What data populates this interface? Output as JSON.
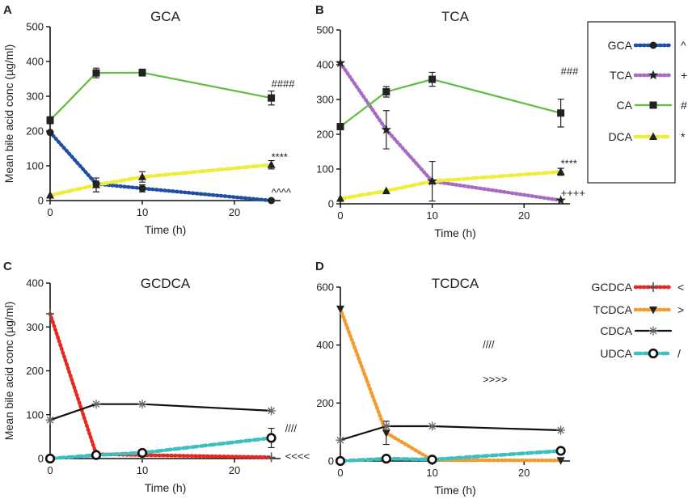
{
  "chart_data": [
    {
      "type": "line",
      "letter": "A",
      "title": "GCA",
      "xlabel": "Time (h)",
      "ylabel": "Mean bile acid conc (µg/ml)",
      "xlim": [
        0,
        25
      ],
      "ylim": [
        0,
        500
      ],
      "xticks": [
        "0",
        "10",
        "20"
      ],
      "yticks": [
        "0",
        "100",
        "200",
        "300",
        "400",
        "500"
      ],
      "series": [
        {
          "name": "GCA",
          "color": "#1f4ea3",
          "style": "dotted",
          "marker": "circle",
          "symbol": "^",
          "x": [
            0,
            5,
            10,
            24
          ],
          "y": [
            196,
            48,
            35,
            0
          ],
          "err": [
            0,
            8,
            10,
            0
          ]
        },
        {
          "name": "CA",
          "color": "#5fbf3a",
          "style": "solid",
          "marker": "square",
          "symbol": "#",
          "x": [
            0,
            5,
            10,
            24
          ],
          "y": [
            231,
            367,
            368,
            295
          ],
          "err": [
            10,
            14,
            10,
            20
          ]
        },
        {
          "name": "DCA",
          "color": "#eded3a",
          "style": "dashed",
          "marker": "triangle",
          "symbol": "*",
          "x": [
            0,
            5,
            10,
            24
          ],
          "y": [
            15,
            45,
            68,
            103
          ],
          "err": [
            0,
            20,
            15,
            12
          ]
        }
      ],
      "annotations": [
        {
          "text": "####",
          "x": 24,
          "y": 335
        },
        {
          "text": "****",
          "x": 24,
          "y": 125
        },
        {
          "text": "^^^^",
          "x": 24,
          "y": 22
        }
      ]
    },
    {
      "type": "line",
      "letter": "B",
      "title": "TCA",
      "xlabel": "Time (h)",
      "ylabel": "",
      "xlim": [
        0,
        25
      ],
      "ylim": [
        0,
        500
      ],
      "xticks": [
        "0",
        "10",
        "20"
      ],
      "yticks": [
        "0",
        "100",
        "200",
        "300",
        "400",
        "500"
      ],
      "series": [
        {
          "name": "TCA",
          "color": "#a86bc2",
          "style": "dotted",
          "marker": "star",
          "symbol": "+",
          "x": [
            0,
            5,
            10,
            24
          ],
          "y": [
            405,
            213,
            65,
            10
          ],
          "err": [
            0,
            55,
            57,
            0
          ]
        },
        {
          "name": "CA",
          "color": "#5fbf3a",
          "style": "solid",
          "marker": "square",
          "symbol": "#",
          "x": [
            0,
            5,
            10,
            24
          ],
          "y": [
            222,
            322,
            358,
            261
          ],
          "err": [
            0,
            15,
            20,
            40
          ]
        },
        {
          "name": "DCA",
          "color": "#eded3a",
          "style": "dashed",
          "marker": "triangle",
          "symbol": "*",
          "x": [
            0,
            5,
            10,
            24
          ],
          "y": [
            15,
            37,
            65,
            92
          ],
          "err": [
            0,
            0,
            0,
            10
          ]
        }
      ],
      "annotations": [
        {
          "text": "###",
          "x": 24,
          "y": 380
        },
        {
          "text": "****",
          "x": 24,
          "y": 115
        },
        {
          "text": "++++",
          "x": 24,
          "y": 30
        }
      ]
    },
    {
      "type": "line",
      "letter": "C",
      "title": "GCDCA",
      "xlabel": "Time (h)",
      "ylabel": "Mean bile acid conc (µg/ml)",
      "xlim": [
        0,
        25
      ],
      "ylim": [
        0,
        400
      ],
      "xticks": [
        "0",
        "10",
        "20"
      ],
      "yticks": [
        "0",
        "100",
        "200",
        "300",
        "400"
      ],
      "series": [
        {
          "name": "GCDCA",
          "color": "#e8281e",
          "style": "dotted",
          "marker": "plus",
          "symbol": "<",
          "x": [
            0,
            5,
            10,
            24
          ],
          "y": [
            330,
            10,
            8,
            3
          ],
          "err": [
            0,
            0,
            0,
            0
          ]
        },
        {
          "name": "CDCA",
          "color": "#111111",
          "style": "solid",
          "marker": "asterisk",
          "symbol": "",
          "x": [
            0,
            5,
            10,
            24
          ],
          "y": [
            88,
            124,
            124,
            109
          ],
          "err": [
            0,
            0,
            0,
            0
          ]
        },
        {
          "name": "UDCA",
          "color": "#3bbfbf",
          "style": "dashed",
          "marker": "ring",
          "symbol": "/",
          "x": [
            0,
            5,
            10,
            24
          ],
          "y": [
            0,
            8,
            13,
            47
          ],
          "err": [
            0,
            0,
            0,
            22
          ]
        }
      ],
      "annotations": [
        {
          "text": "////",
          "x": 25.5,
          "y": 68
        },
        {
          "text": "<<<<",
          "x": 25.5,
          "y": 5
        }
      ]
    },
    {
      "type": "line",
      "letter": "D",
      "title": "TCDCA",
      "xlabel": "Time (h)",
      "ylabel": "",
      "xlim": [
        0,
        25
      ],
      "ylim": [
        0,
        600
      ],
      "xticks": [
        "0",
        "10",
        "20"
      ],
      "yticks": [
        "0",
        "200",
        "400",
        "600"
      ],
      "series": [
        {
          "name": "TCDCA",
          "color": "#f39b2e",
          "style": "dotted",
          "marker": "invtriangle",
          "symbol": ">",
          "x": [
            0,
            5,
            10,
            24
          ],
          "y": [
            525,
            97,
            3,
            2
          ],
          "err": [
            0,
            40,
            0,
            0
          ]
        },
        {
          "name": "CDCA",
          "color": "#111111",
          "style": "solid",
          "marker": "asterisk",
          "symbol": "",
          "x": [
            0,
            5,
            10,
            24
          ],
          "y": [
            72,
            120,
            120,
            106
          ],
          "err": [
            0,
            0,
            0,
            0
          ]
        },
        {
          "name": "UDCA",
          "color": "#3bbfbf",
          "style": "dashed",
          "marker": "ring",
          "symbol": "/",
          "x": [
            0,
            5,
            10,
            24
          ],
          "y": [
            0,
            8,
            5,
            35
          ],
          "err": [
            0,
            0,
            0,
            0
          ]
        }
      ],
      "annotations": [
        {
          "text": "////",
          "x": 15.5,
          "y": 400
        },
        {
          "text": ">>>>",
          "x": 15.5,
          "y": 280
        }
      ]
    }
  ],
  "legends": [
    {
      "entries": [
        {
          "label": "GCA",
          "symbol": "^",
          "color": "#1f4ea3",
          "style": "dotted",
          "marker": "circle"
        },
        {
          "label": "TCA",
          "symbol": "+",
          "color": "#a86bc2",
          "style": "dotted",
          "marker": "star"
        },
        {
          "label": "CA",
          "symbol": "#",
          "color": "#5fbf3a",
          "style": "solid",
          "marker": "square"
        },
        {
          "label": "DCA",
          "symbol": "*",
          "color": "#eded3a",
          "style": "dashed",
          "marker": "triangle"
        }
      ]
    },
    {
      "entries": [
        {
          "label": "GCDCA",
          "symbol": "<",
          "color": "#e8281e",
          "style": "dotted",
          "marker": "plus"
        },
        {
          "label": "TCDCA",
          "symbol": ">",
          "color": "#f39b2e",
          "style": "dotted",
          "marker": "invtriangle"
        },
        {
          "label": "CDCA",
          "symbol": "",
          "color": "#111111",
          "style": "solid",
          "marker": "asterisk"
        },
        {
          "label": "UDCA",
          "symbol": "/",
          "color": "#3bbfbf",
          "style": "dashed",
          "marker": "ring"
        }
      ]
    }
  ]
}
